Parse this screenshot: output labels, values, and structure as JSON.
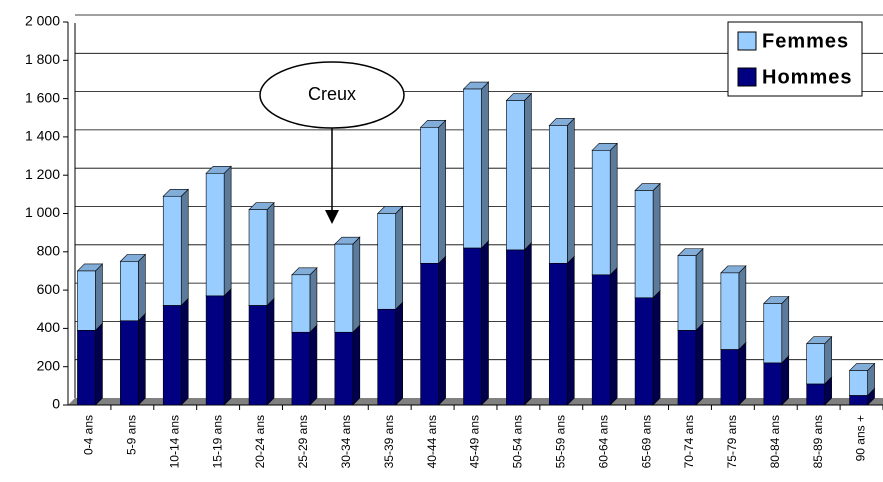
{
  "chart_data": {
    "type": "stacked_bar_3d",
    "annotation": "Creux",
    "categories": [
      "0-4 ans",
      "5-9 ans",
      "10-14 ans",
      "15-19 ans",
      "20-24 ans",
      "25-29 ans",
      "30-34 ans",
      "35-39 ans",
      "40-44 ans",
      "45-49 ans",
      "50-54 ans",
      "55-59 ans",
      "60-64 ans",
      "65-69 ans",
      "70-74 ans",
      "75-79 ans",
      "80-84 ans",
      "85-89 ans",
      "90 ans +"
    ],
    "series": [
      {
        "name": "Hommes",
        "color": "#000080",
        "values": [
          390,
          440,
          520,
          570,
          520,
          380,
          380,
          500,
          740,
          820,
          810,
          740,
          680,
          560,
          390,
          290,
          220,
          110,
          50
        ]
      },
      {
        "name": "Femmes",
        "color": "#99ccff",
        "values": [
          310,
          310,
          570,
          640,
          500,
          300,
          460,
          500,
          710,
          830,
          780,
          720,
          650,
          560,
          390,
          400,
          310,
          210,
          130
        ]
      }
    ],
    "ylim": [
      0,
      2000
    ],
    "yticks": [
      0,
      200,
      400,
      600,
      800,
      {
        "value": 1000,
        "label": "1 000"
      },
      {
        "value": 1200,
        "label": "1 200"
      },
      {
        "value": 1400,
        "label": "1 400"
      },
      {
        "value": 1600,
        "label": "1 600"
      },
      {
        "value": 1800,
        "label": "1 800"
      },
      {
        "value": 2000,
        "label": "2 000"
      }
    ],
    "grid": true,
    "legend": "top-right"
  }
}
